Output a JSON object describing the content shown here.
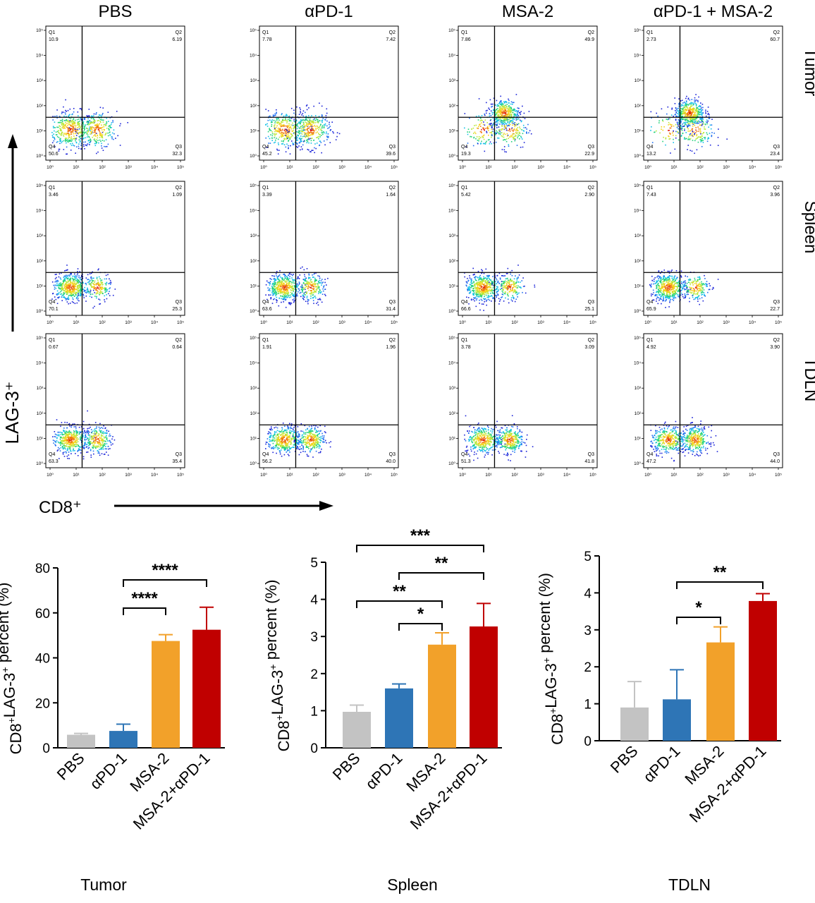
{
  "flow": {
    "columns": [
      "PBS",
      "αPD-1",
      "MSA-2",
      "αPD-1 + MSA-2"
    ],
    "rows": [
      "Tumor",
      "Spleen",
      "TDLN"
    ],
    "y_axis_label": "LAG-3⁺",
    "x_axis_label": "CD8⁺",
    "tick_labels": [
      "10⁰",
      "10¹",
      "10²",
      "10³",
      "10⁴",
      "10⁵"
    ],
    "quadrant_names": [
      "Q1",
      "Q2",
      "Q3",
      "Q4"
    ],
    "plots": [
      [
        {
          "q1": "10.9",
          "q2": "6.19",
          "q3": "32.3",
          "q4": "50.6",
          "gate_x": 1.2,
          "gate_y": 1.6
        },
        {
          "q1": "7.78",
          "q2": "7.42",
          "q3": "39.6",
          "q4": "45.2",
          "gate_x": 1.2,
          "gate_y": 1.6
        },
        {
          "q1": "7.86",
          "q2": "49.9",
          "q3": "22.9",
          "q4": "19.3",
          "gate_x": 1.2,
          "gate_y": 1.6
        },
        {
          "q1": "2.73",
          "q2": "60.7",
          "q3": "23.4",
          "q4": "13.2",
          "gate_x": 1.2,
          "gate_y": 1.6
        }
      ],
      [
        {
          "q1": "3.46",
          "q2": "1.09",
          "q3": "25.3",
          "q4": "70.1",
          "gate_x": 1.2,
          "gate_y": 1.6
        },
        {
          "q1": "3.39",
          "q2": "1.64",
          "q3": "31.4",
          "q4": "63.6",
          "gate_x": 1.2,
          "gate_y": 1.6
        },
        {
          "q1": "5.42",
          "q2": "2.90",
          "q3": "25.1",
          "q4": "66.6",
          "gate_x": 1.2,
          "gate_y": 1.6
        },
        {
          "q1": "7.43",
          "q2": "3.96",
          "q3": "22.7",
          "q4": "65.9",
          "gate_x": 1.2,
          "gate_y": 1.6
        }
      ],
      [
        {
          "q1": "0.67",
          "q2": "0.64",
          "q3": "35.4",
          "q4": "63.3",
          "gate_x": 1.2,
          "gate_y": 1.6
        },
        {
          "q1": "1.91",
          "q2": "1.96",
          "q3": "40.0",
          "q4": "56.2",
          "gate_x": 1.2,
          "gate_y": 1.6
        },
        {
          "q1": "3.78",
          "q2": "3.09",
          "q3": "41.8",
          "q4": "51.3",
          "gate_x": 1.2,
          "gate_y": 1.6
        },
        {
          "q1": "4.92",
          "q2": "3.90",
          "q3": "44.0",
          "q4": "47.2",
          "gate_x": 1.2,
          "gate_y": 1.6
        }
      ]
    ]
  },
  "colors": {
    "PBS": "#c3c3c3",
    "aPD-1": "#2e75b6",
    "MSA-2": "#f2a12a",
    "MSA-2+aPD-1": "#c00000",
    "gate_line": "#000000",
    "axis": "#000000"
  },
  "chart_data": [
    {
      "type": "bar",
      "caption": "Tumor",
      "categories": [
        "PBS",
        "αPD-1",
        "MSA-2",
        "MSA-2+αPD-1"
      ],
      "values": [
        5.8,
        7.5,
        47.5,
        52.5
      ],
      "errors": [
        0.6,
        3.0,
        2.8,
        10.0
      ],
      "ylabel_main": "CD8",
      "ylabel_mid": "LAG-3",
      "ylabel_sup": "+",
      "ylabel_tail": " percent (%)",
      "ylim": [
        0,
        80
      ],
      "yticks": [
        0,
        20,
        40,
        60,
        80
      ],
      "significance": [
        {
          "from": 1,
          "to": 3,
          "label": "****"
        },
        {
          "from": 1,
          "to": 2,
          "label": "****"
        }
      ]
    },
    {
      "type": "bar",
      "caption": "Spleen",
      "categories": [
        "PBS",
        "αPD-1",
        "MSA-2",
        "MSA-2+αPD-1"
      ],
      "values": [
        0.97,
        1.6,
        2.78,
        3.27
      ],
      "errors": [
        0.18,
        0.12,
        0.32,
        0.62
      ],
      "ylabel_main": "CD8",
      "ylabel_mid": "LAG-3",
      "ylabel_sup": "+",
      "ylabel_tail": " percent (%)",
      "ylim": [
        0,
        5
      ],
      "yticks": [
        0,
        1,
        2,
        3,
        4,
        5
      ],
      "significance": [
        {
          "from": 0,
          "to": 3,
          "label": "***"
        },
        {
          "from": 1,
          "to": 3,
          "label": "**"
        },
        {
          "from": 0,
          "to": 2,
          "label": "**"
        },
        {
          "from": 1,
          "to": 2,
          "label": "*"
        }
      ]
    },
    {
      "type": "bar",
      "caption": "TDLN",
      "categories": [
        "PBS",
        "αPD-1",
        "MSA-2",
        "MSA-2+αPD-1"
      ],
      "values": [
        0.9,
        1.12,
        2.66,
        3.78
      ],
      "errors": [
        0.7,
        0.8,
        0.42,
        0.2
      ],
      "ylabel_main": "CD8",
      "ylabel_mid": "LAG-3",
      "ylabel_sup": "+",
      "ylabel_tail": " percent (%)",
      "ylim": [
        0,
        5
      ],
      "yticks": [
        0,
        1,
        2,
        3,
        4,
        5
      ],
      "significance": [
        {
          "from": 1,
          "to": 3,
          "label": "**"
        },
        {
          "from": 1,
          "to": 2,
          "label": "*"
        }
      ]
    }
  ]
}
